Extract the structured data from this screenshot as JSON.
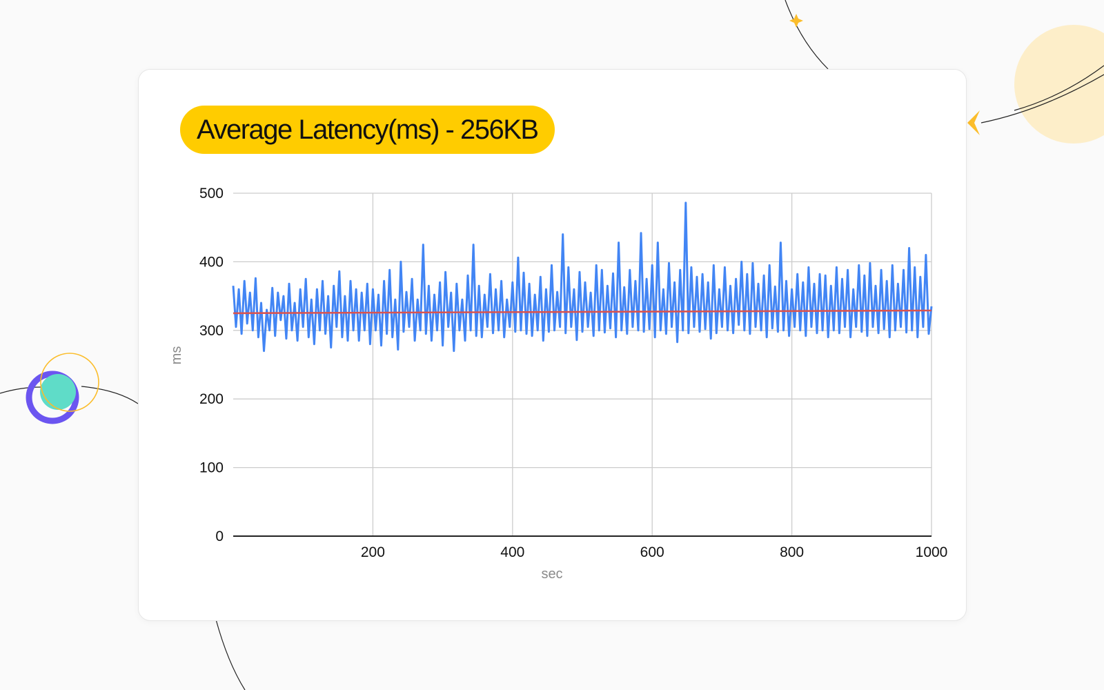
{
  "colors": {
    "background": "#fafafa",
    "card": "#ffffff",
    "title_pill": "#ffcc00",
    "latency_series": "#4285f4",
    "trend_series": "#d9534f",
    "grid": "#cccccc",
    "axis": "#222222",
    "decor_yellow": "#fbbd2b",
    "decor_purple": "#6b55f0",
    "decor_teal": "#5fdcc8",
    "decor_planet": "#fdeec9"
  },
  "chart_data": {
    "type": "line",
    "title": "Average Latency(ms) - 256KB",
    "xlabel": "sec",
    "ylabel": "ms",
    "xlim": [
      0,
      1000
    ],
    "ylim": [
      0,
      500
    ],
    "xticks": [
      200,
      400,
      600,
      800,
      1000
    ],
    "yticks": [
      0,
      100,
      200,
      300,
      400,
      500
    ],
    "grid": true,
    "legend": "none",
    "series": [
      {
        "color": "#4285f4",
        "points": [
          [
            0,
            365
          ],
          [
            4,
            305
          ],
          [
            8,
            360
          ],
          [
            12,
            295
          ],
          [
            16,
            372
          ],
          [
            20,
            310
          ],
          [
            24,
            355
          ],
          [
            28,
            300
          ],
          [
            32,
            376
          ],
          [
            36,
            290
          ],
          [
            40,
            340
          ],
          [
            44,
            270
          ],
          [
            48,
            330
          ],
          [
            52,
            300
          ],
          [
            56,
            362
          ],
          [
            60,
            292
          ],
          [
            64,
            355
          ],
          [
            68,
            315
          ],
          [
            72,
            350
          ],
          [
            76,
            288
          ],
          [
            80,
            368
          ],
          [
            84,
            300
          ],
          [
            88,
            340
          ],
          [
            92,
            285
          ],
          [
            96,
            360
          ],
          [
            100,
            305
          ],
          [
            104,
            375
          ],
          [
            108,
            290
          ],
          [
            112,
            345
          ],
          [
            116,
            280
          ],
          [
            120,
            360
          ],
          [
            124,
            300
          ],
          [
            128,
            372
          ],
          [
            132,
            295
          ],
          [
            136,
            350
          ],
          [
            140,
            275
          ],
          [
            144,
            365
          ],
          [
            148,
            305
          ],
          [
            152,
            386
          ],
          [
            156,
            290
          ],
          [
            160,
            350
          ],
          [
            164,
            285
          ],
          [
            168,
            372
          ],
          [
            172,
            300
          ],
          [
            176,
            360
          ],
          [
            180,
            285
          ],
          [
            184,
            355
          ],
          [
            188,
            300
          ],
          [
            192,
            368
          ],
          [
            196,
            280
          ],
          [
            200,
            360
          ],
          [
            204,
            300
          ],
          [
            208,
            352
          ],
          [
            212,
            278
          ],
          [
            216,
            372
          ],
          [
            220,
            295
          ],
          [
            224,
            388
          ],
          [
            228,
            290
          ],
          [
            232,
            345
          ],
          [
            236,
            272
          ],
          [
            240,
            400
          ],
          [
            244,
            298
          ],
          [
            248,
            356
          ],
          [
            252,
            305
          ],
          [
            256,
            375
          ],
          [
            260,
            285
          ],
          [
            264,
            345
          ],
          [
            268,
            300
          ],
          [
            272,
            425
          ],
          [
            276,
            295
          ],
          [
            280,
            365
          ],
          [
            284,
            285
          ],
          [
            288,
            352
          ],
          [
            292,
            300
          ],
          [
            296,
            370
          ],
          [
            300,
            278
          ],
          [
            304,
            385
          ],
          [
            308,
            305
          ],
          [
            312,
            355
          ],
          [
            316,
            270
          ],
          [
            320,
            368
          ],
          [
            324,
            300
          ],
          [
            328,
            345
          ],
          [
            332,
            285
          ],
          [
            336,
            380
          ],
          [
            340,
            300
          ],
          [
            344,
            425
          ],
          [
            348,
            292
          ],
          [
            352,
            365
          ],
          [
            356,
            290
          ],
          [
            360,
            352
          ],
          [
            364,
            305
          ],
          [
            368,
            382
          ],
          [
            372,
            296
          ],
          [
            376,
            360
          ],
          [
            380,
            300
          ],
          [
            384,
            372
          ],
          [
            388,
            290
          ],
          [
            392,
            345
          ],
          [
            396,
            305
          ],
          [
            400,
            370
          ],
          [
            404,
            298
          ],
          [
            408,
            406
          ],
          [
            412,
            300
          ],
          [
            416,
            384
          ],
          [
            420,
            295
          ],
          [
            424,
            368
          ],
          [
            428,
            292
          ],
          [
            432,
            352
          ],
          [
            436,
            300
          ],
          [
            440,
            378
          ],
          [
            444,
            285
          ],
          [
            448,
            360
          ],
          [
            452,
            298
          ],
          [
            456,
            395
          ],
          [
            460,
            300
          ],
          [
            464,
            356
          ],
          [
            468,
            305
          ],
          [
            472,
            440
          ],
          [
            476,
            296
          ],
          [
            480,
            392
          ],
          [
            484,
            305
          ],
          [
            488,
            360
          ],
          [
            492,
            286
          ],
          [
            496,
            385
          ],
          [
            500,
            298
          ],
          [
            504,
            370
          ],
          [
            508,
            305
          ],
          [
            512,
            355
          ],
          [
            516,
            292
          ],
          [
            520,
            395
          ],
          [
            524,
            300
          ],
          [
            528,
            388
          ],
          [
            532,
            297
          ],
          [
            536,
            365
          ],
          [
            540,
            303
          ],
          [
            544,
            383
          ],
          [
            548,
            290
          ],
          [
            552,
            428
          ],
          [
            556,
            300
          ],
          [
            560,
            363
          ],
          [
            564,
            295
          ],
          [
            568,
            388
          ],
          [
            572,
            305
          ],
          [
            576,
            372
          ],
          [
            580,
            300
          ],
          [
            584,
            442
          ],
          [
            588,
            298
          ],
          [
            592,
            375
          ],
          [
            596,
            302
          ],
          [
            600,
            395
          ],
          [
            604,
            290
          ],
          [
            608,
            428
          ],
          [
            612,
            300
          ],
          [
            616,
            360
          ],
          [
            620,
            295
          ],
          [
            624,
            398
          ],
          [
            628,
            305
          ],
          [
            632,
            370
          ],
          [
            636,
            283
          ],
          [
            640,
            388
          ],
          [
            644,
            300
          ],
          [
            648,
            486
          ],
          [
            652,
            296
          ],
          [
            656,
            392
          ],
          [
            660,
            305
          ],
          [
            664,
            378
          ],
          [
            668,
            298
          ],
          [
            672,
            382
          ],
          [
            676,
            302
          ],
          [
            680,
            370
          ],
          [
            684,
            288
          ],
          [
            688,
            395
          ],
          [
            692,
            296
          ],
          [
            696,
            360
          ],
          [
            700,
            305
          ],
          [
            704,
            392
          ],
          [
            708,
            300
          ],
          [
            712,
            365
          ],
          [
            716,
            296
          ],
          [
            720,
            375
          ],
          [
            724,
            308
          ],
          [
            728,
            400
          ],
          [
            732,
            300
          ],
          [
            736,
            382
          ],
          [
            740,
            295
          ],
          [
            744,
            398
          ],
          [
            748,
            305
          ],
          [
            752,
            368
          ],
          [
            756,
            300
          ],
          [
            760,
            380
          ],
          [
            764,
            290
          ],
          [
            768,
            395
          ],
          [
            772,
            303
          ],
          [
            776,
            364
          ],
          [
            780,
            298
          ],
          [
            784,
            428
          ],
          [
            788,
            300
          ],
          [
            792,
            372
          ],
          [
            796,
            292
          ],
          [
            800,
            360
          ],
          [
            804,
            305
          ],
          [
            808,
            382
          ],
          [
            812,
            300
          ],
          [
            816,
            370
          ],
          [
            820,
            292
          ],
          [
            824,
            392
          ],
          [
            828,
            305
          ],
          [
            832,
            368
          ],
          [
            836,
            296
          ],
          [
            840,
            382
          ],
          [
            844,
            300
          ],
          [
            848,
            380
          ],
          [
            852,
            290
          ],
          [
            856,
            365
          ],
          [
            860,
            300
          ],
          [
            864,
            392
          ],
          [
            868,
            296
          ],
          [
            872,
            375
          ],
          [
            876,
            305
          ],
          [
            880,
            388
          ],
          [
            884,
            290
          ],
          [
            888,
            360
          ],
          [
            892,
            305
          ],
          [
            896,
            395
          ],
          [
            900,
            298
          ],
          [
            904,
            380
          ],
          [
            908,
            292
          ],
          [
            912,
            398
          ],
          [
            916,
            305
          ],
          [
            920,
            365
          ],
          [
            924,
            296
          ],
          [
            928,
            388
          ],
          [
            932,
            302
          ],
          [
            936,
            372
          ],
          [
            940,
            290
          ],
          [
            944,
            395
          ],
          [
            948,
            300
          ],
          [
            952,
            368
          ],
          [
            956,
            305
          ],
          [
            960,
            388
          ],
          [
            964,
            297
          ],
          [
            968,
            420
          ],
          [
            972,
            300
          ],
          [
            976,
            392
          ],
          [
            980,
            290
          ],
          [
            984,
            378
          ],
          [
            988,
            305
          ],
          [
            992,
            410
          ],
          [
            996,
            295
          ],
          [
            1000,
            335
          ]
        ]
      },
      {
        "color": "#d9534f",
        "points": [
          [
            0,
            325
          ],
          [
            1000,
            329
          ]
        ]
      }
    ]
  }
}
